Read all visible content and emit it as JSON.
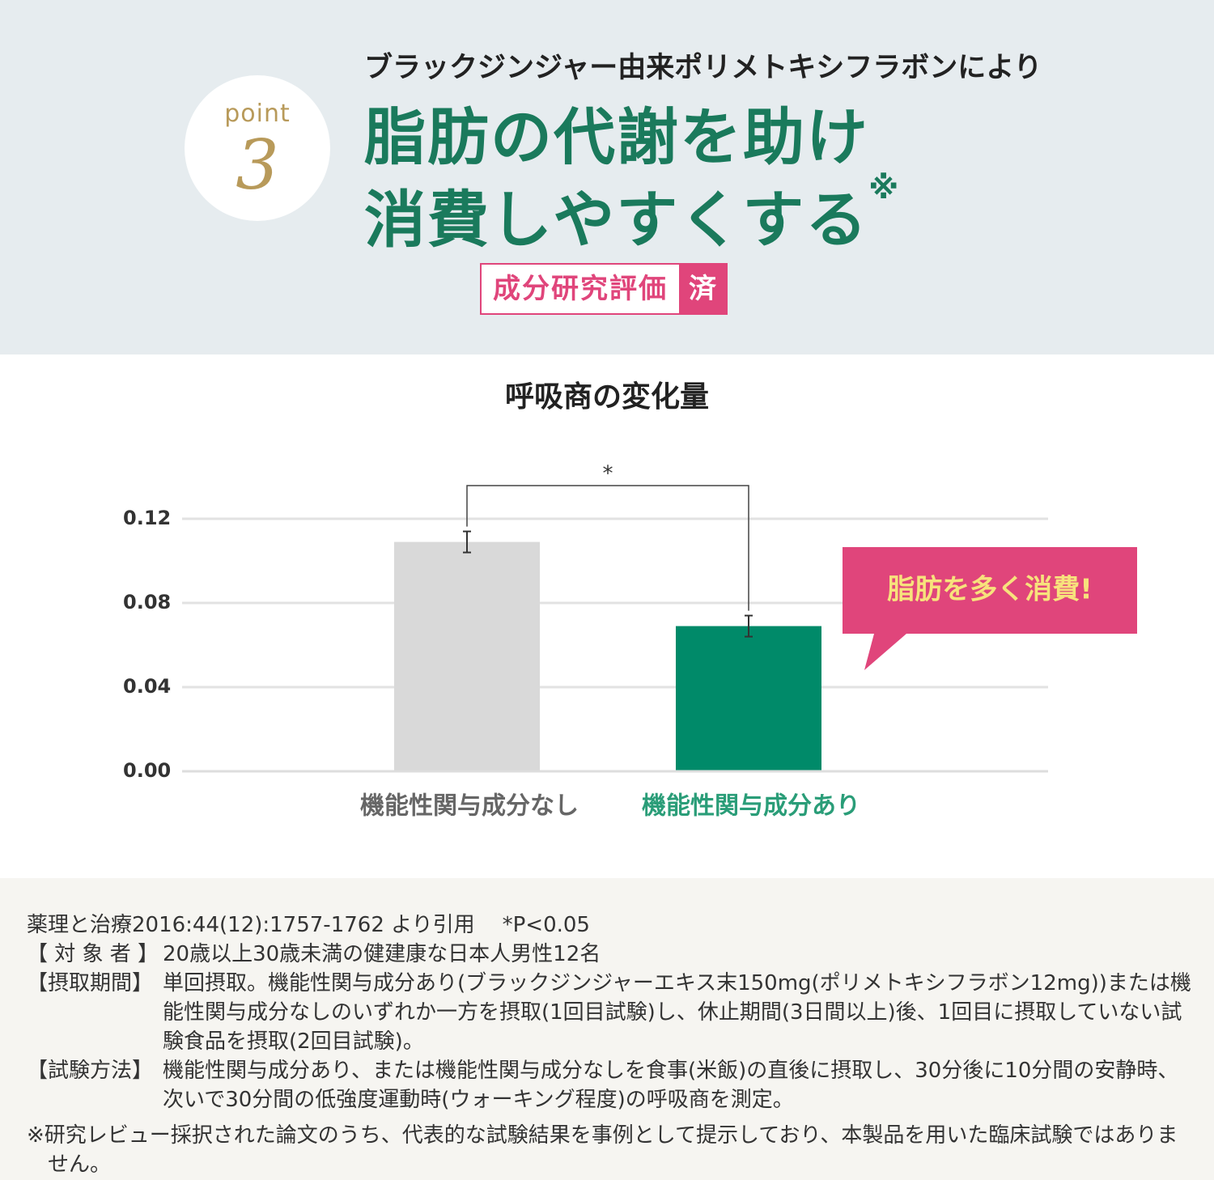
{
  "header": {
    "point_label": "point",
    "point_number": "3",
    "lead": "ブラックジンジャー由来ポリメトキシフラボンにより",
    "title_lines": [
      "脂肪の代謝を助け",
      "消費しやすくする"
    ],
    "title_mark": "※",
    "badge": "成分研究評価",
    "badge_mark": "済"
  },
  "chart_data": {
    "type": "bar",
    "title": "呼吸商の変化量",
    "categories": [
      "機能性関与成分なし",
      "機能性関与成分あり"
    ],
    "values": [
      0.109,
      0.069
    ],
    "errors": [
      0.005,
      0.005
    ],
    "colors": [
      "#d9d9d9",
      "#008a69"
    ],
    "label_colors": [
      "#666666",
      "#2a9d78"
    ],
    "ylim": [
      0,
      0.12
    ],
    "yticks": [
      {
        "value": 0,
        "label": "0.00"
      },
      0.04,
      0.08,
      0.12
    ],
    "grid": true,
    "significance": "*",
    "callout": "脂肪を多く消費!"
  },
  "notes": {
    "citation": "薬理と治療2016:44(12):1757-1762 より引用",
    "p_value": "*P<0.05",
    "items": [
      {
        "label": "【 対 象 者 】",
        "text": "20歳以上30歳未満の健建康な日本人男性12名"
      },
      {
        "label": "【摂取期間】",
        "text": "単回摂取。機能性関与成分あり(ブラックジンジャーエキス末150mg(ポリメトキシフラボン12mg))または機能性関与成分なしのいずれか一方を摂取(1回目試験)し、休止期間(3日間以上)後、1回目に摂取していない試験食品を摂取(2回目試験)。"
      },
      {
        "label": "【試験方法】",
        "text": "機能性関与成分あり、または機能性関与成分なしを食事(米飯)の直後に摂取し、30分後に10分間の安静時、次いで30分間の低強度運動時(ウォーキング程度)の呼吸商を測定。"
      }
    ],
    "disclaimer": "※研究レビュー採択された論文のうち、代表的な試験結果を事例として提示しており、本製品を用いた臨床試験ではありません。"
  }
}
